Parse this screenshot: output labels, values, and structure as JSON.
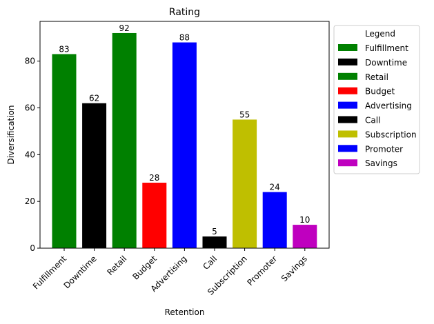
{
  "chart_data": {
    "type": "bar",
    "title": "Rating",
    "xlabel": "Retention",
    "ylabel": "Diversification",
    "categories": [
      "Fulfillment",
      "Downtime",
      "Retail",
      "Budget",
      "Advertising",
      "Call",
      "Subscription",
      "Promoter",
      "Savings"
    ],
    "values": [
      83,
      62,
      92,
      28,
      88,
      5,
      55,
      24,
      10
    ],
    "colors": [
      "#008000",
      "#000000",
      "#008000",
      "#ff0000",
      "#0000ff",
      "#000000",
      "#bfbf00",
      "#0000ff",
      "#bf00bf"
    ],
    "ylim": [
      0,
      97
    ],
    "yticks": [
      0,
      20,
      40,
      60,
      80
    ],
    "grid": false,
    "legend": {
      "title": "Legend",
      "placement": "outside-right-top",
      "entries": [
        "Fulfillment",
        "Downtime",
        "Retail",
        "Budget",
        "Advertising",
        "Call",
        "Subscription",
        "Promoter",
        "Savings"
      ]
    }
  }
}
